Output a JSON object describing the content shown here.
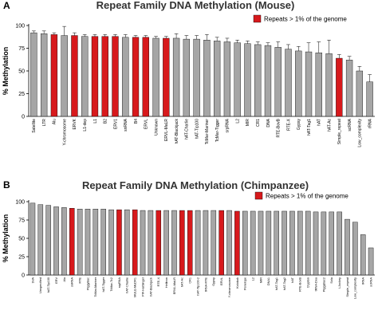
{
  "figure": {
    "panels": [
      {
        "letter": "A",
        "title": "Repeat Family DNA Methylation (Mouse)"
      },
      {
        "letter": "B",
        "title": "Repeat Family DNA Methylation (Chimpanzee)"
      }
    ]
  },
  "colors": {
    "gray": "#a6a6a6",
    "red": "#d7191c"
  },
  "chart_data": [
    {
      "type": "bar",
      "title": "Repeat Family DNA Methylation (Mouse)",
      "ylabel": "% Methylation",
      "ylim": [
        0,
        100
      ],
      "yticks": [
        0,
        25,
        50,
        75,
        100
      ],
      "legend": {
        "label": "Repeats > 1% of the genome",
        "color": "#d7191c",
        "placement": "top-right"
      },
      "categories": [
        "Satellite",
        "LTR",
        "Alu",
        "Y-chromosome",
        "ERVK",
        "L1-dep",
        "L1",
        "B2",
        "ERV1",
        "snRNA",
        "B4",
        "ERVL",
        "Unknown",
        "ERVL-MaLR",
        "hAT-Blackjack",
        "hAT-Charlie",
        "hAT-Tip100",
        "TcMar-Mariner",
        "TcMar-Tigger",
        "srpRNA",
        "L2",
        "MIR",
        "CR1",
        "DNA",
        "RTE-BovB",
        "RTE-X",
        "Gypsy",
        "hAT-Tag1",
        "hAT",
        "hAT-Ac",
        "Simple_repeat",
        "scRNA",
        "Low_complexity",
        "rRNA"
      ],
      "values": [
        92,
        91,
        90,
        89,
        89,
        88,
        88,
        88,
        88,
        87,
        87,
        87,
        86,
        86,
        86,
        85,
        85,
        84,
        83,
        82,
        81,
        80,
        79,
        78,
        76,
        74,
        72,
        71,
        70,
        69,
        64,
        62,
        50,
        38
      ],
      "errors": [
        2,
        3,
        2,
        10,
        3,
        2,
        2,
        2,
        2,
        3,
        2,
        2,
        2,
        2,
        5,
        4,
        4,
        6,
        4,
        4,
        3,
        3,
        3,
        3,
        6,
        5,
        5,
        10,
        12,
        15,
        4,
        4,
        5,
        8
      ],
      "highlighted": [
        false,
        false,
        true,
        false,
        true,
        false,
        true,
        true,
        true,
        false,
        true,
        true,
        false,
        true,
        false,
        false,
        false,
        false,
        false,
        false,
        false,
        false,
        false,
        false,
        false,
        false,
        false,
        false,
        false,
        false,
        true,
        false,
        false,
        false
      ]
    },
    {
      "type": "bar",
      "title": "Repeat Family DNA Methylation (Chimpanzee)",
      "ylabel": "% Methylation",
      "ylim": [
        0,
        100
      ],
      "yticks": [
        0,
        25,
        50,
        75,
        100
      ],
      "legend": {
        "label": "Repeats > 1% of the genome",
        "color": "#d7191c",
        "placement": "top-right"
      },
      "categories": [
        "SVA",
        "Unspecified",
        "hAT-Tip100",
        "ERV",
        "Alu",
        "snRNA",
        "RTE",
        "PiggyBac",
        "TcMar-Mariner",
        "hAT-Tigger",
        "TcMar-Tc2",
        "srpRNA",
        "hAT-Charlie",
        "MULE-MuDR1",
        "PIF-Harbinger",
        "hAT-Blackjack",
        "RTE-X",
        "Helitron",
        "ERVL-MaLR",
        "hAT-Ac",
        "CR1",
        "hAT-Tip100-2",
        "tRNA-RTE",
        "Gypsy",
        "ERVL",
        "Y-chromosome",
        "Kolobok",
        "Penelope",
        "L2",
        "MIR",
        "DNA1",
        "hAT-Tag1",
        "hAT-Tag2",
        "hAT",
        "RTE-BovB",
        "Crypton",
        "tRNA-Deu",
        "PiggyBac2",
        "Sola",
        "I-Jockey",
        "Simple_repeat",
        "Low_complexity",
        "rRNA",
        "scRNA"
      ],
      "values": [
        98,
        96,
        95,
        93,
        92,
        91,
        90,
        90,
        90,
        90,
        89,
        89,
        89,
        89,
        88,
        88,
        88,
        88,
        88,
        88,
        88,
        88,
        88,
        88,
        88,
        88,
        87,
        87,
        87,
        87,
        87,
        87,
        87,
        87,
        87,
        87,
        86,
        86,
        86,
        86,
        76,
        72,
        55,
        37
      ],
      "highlighted": [
        false,
        false,
        false,
        false,
        false,
        true,
        false,
        false,
        false,
        false,
        false,
        true,
        false,
        true,
        false,
        false,
        true,
        false,
        false,
        true,
        true,
        false,
        false,
        false,
        true,
        false,
        true,
        false,
        false,
        false,
        false,
        false,
        false,
        false,
        false,
        false,
        false,
        false,
        false,
        false,
        false,
        false,
        false,
        false
      ]
    }
  ]
}
